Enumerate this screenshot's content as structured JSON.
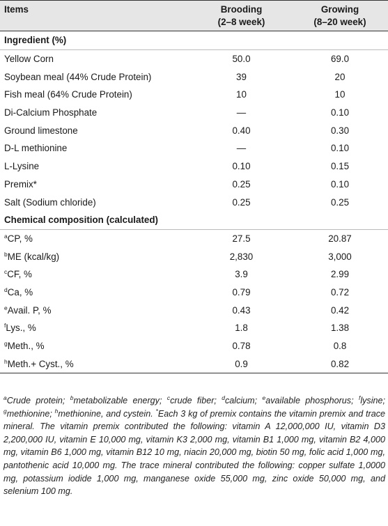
{
  "header": {
    "items": "Items",
    "brooding_name": "Brooding",
    "brooding_period": "(2–8 week)",
    "growing_name": "Growing",
    "growing_period": "(8–20 week)"
  },
  "ingredient_section": "Ingredient (%)",
  "ingredients": [
    {
      "item": "Yellow Corn",
      "sup": "",
      "brooding": "50.0",
      "growing": "69.0"
    },
    {
      "item": "Soybean meal (44% Crude Protein)",
      "sup": "",
      "brooding": "39",
      "growing": "20"
    },
    {
      "item": "Fish meal (64% Crude Protein)",
      "sup": "",
      "brooding": "10",
      "growing": "10"
    },
    {
      "item": "Di-Calcium Phosphate",
      "sup": "",
      "brooding": "—",
      "growing": "0.10"
    },
    {
      "item": "Ground limestone",
      "sup": "",
      "brooding": "0.40",
      "growing": "0.30"
    },
    {
      "item": "D-L methionine",
      "sup": "",
      "brooding": "—",
      "growing": "0.10"
    },
    {
      "item": "L-Lysine",
      "sup": "",
      "brooding": "0.10",
      "growing": "0.15"
    },
    {
      "item": "Premix*",
      "sup": "",
      "brooding": "0.25",
      "growing": "0.10"
    },
    {
      "item": "Salt (Sodium chloride)",
      "sup": "",
      "brooding": "0.25",
      "growing": "0.25"
    }
  ],
  "chemical_section": "Chemical composition (calculated)",
  "chemical": [
    {
      "sup": "a",
      "item": "CP, %",
      "brooding": "27.5",
      "growing": "20.87"
    },
    {
      "sup": "b",
      "item": "ME (kcal/kg)",
      "brooding": "2,830",
      "growing": "3,000"
    },
    {
      "sup": "c",
      "item": "CF, %",
      "brooding": "3.9",
      "growing": "2.99"
    },
    {
      "sup": "d",
      "item": "Ca, %",
      "brooding": "0.79",
      "growing": "0.72"
    },
    {
      "sup": "e",
      "item": "Avail. P, %",
      "brooding": "0.43",
      "growing": "0.42"
    },
    {
      "sup": "f",
      "item": "Lys., %",
      "brooding": "1.8",
      "growing": "1.38"
    },
    {
      "sup": "g",
      "item": "Meth., %",
      "brooding": "0.78",
      "growing": "0.8"
    },
    {
      "sup": "h",
      "item": "Meth.+ Cyst., %",
      "brooding": "0.9",
      "growing": "0.82"
    }
  ],
  "footnote": {
    "s_a": "a",
    "t_a": "Crude protein; ",
    "s_b": "b",
    "t_b": "metabolizable energy; ",
    "s_c": "c",
    "t_c": "crude fiber; ",
    "s_d": "d",
    "t_d": "calcium; ",
    "s_e": "e",
    "t_e": "available phosphorus; ",
    "s_f": "f",
    "t_f": "lysine; ",
    "s_g": "g",
    "t_g": "methionine; ",
    "s_h": "h",
    "t_h": "methionine, and cystein. ",
    "s_star": "*",
    "t_rest": "Each 3 kg of premix contains the vitamin premix and trace mineral. The vitamin premix contributed the following: vitamin A 12,000,000 IU, vitamin D3 2,200,000 IU, vitamin E 10,000 mg, vitamin K3 2,000 mg, vitamin B1 1,000 mg, vitamin B2 4,000 mg, vitamin B6 1,000 mg, vitamin B12 10 mg, niacin 20,000 mg, biotin 50 mg, folic acid 1,000 mg, pantothenic acid 10,000 mg. The trace mineral contributed the following: copper sulfate 1,0000 mg, potassium iodide 1,000 mg, manganese oxide 55,000 mg, zinc oxide 50,000 mg, and selenium 100 mg."
  }
}
